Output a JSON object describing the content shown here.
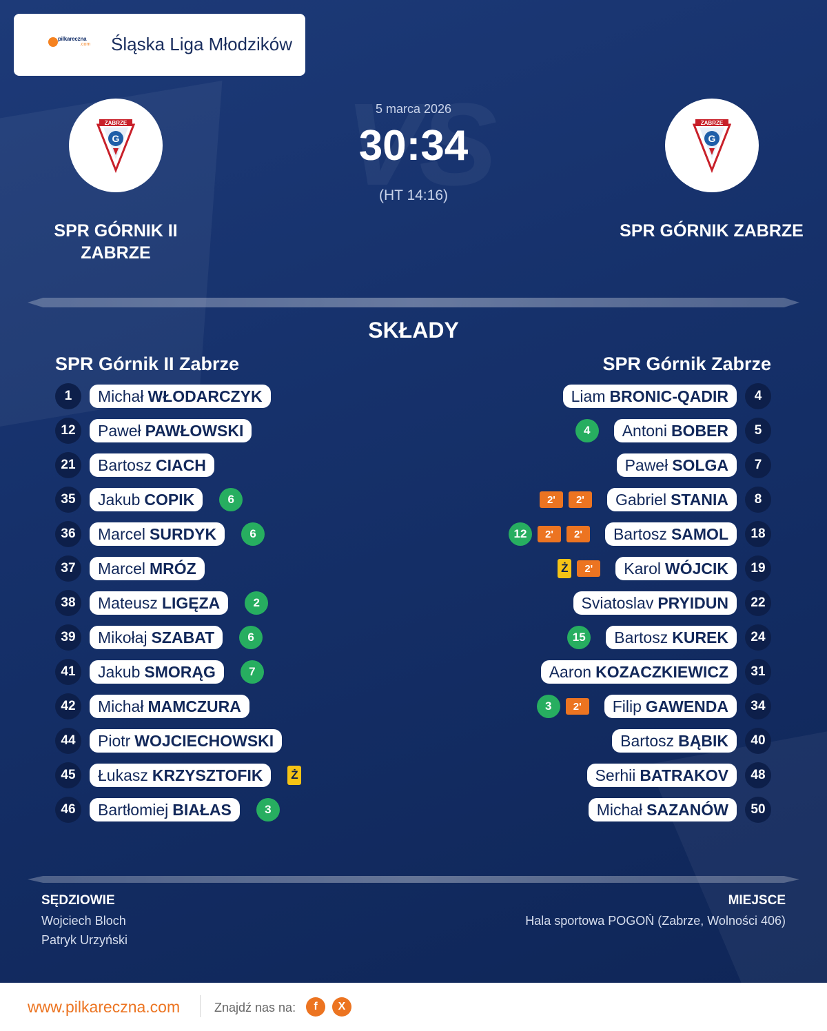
{
  "header": {
    "league": "Śląska Liga Młodzików",
    "logo_text": "pilkareczna",
    "logo_sub": ".com"
  },
  "match": {
    "date": "5 marca 2026",
    "score": "30:34",
    "halftime": "(HT 14:16)",
    "vs_text": "VS",
    "home_name": "SPR GÓRNIK II ZABRZE",
    "away_name": "SPR GÓRNIK ZABRZE"
  },
  "lineups": {
    "title": "SKŁADY",
    "home_team": "SPR Górnik II Zabrze",
    "away_team": "SPR Górnik Zabrze",
    "home": [
      {
        "num": "1",
        "first": "Michał",
        "last": "WŁODARCZYK"
      },
      {
        "num": "12",
        "first": "Paweł",
        "last": "PAWŁOWSKI"
      },
      {
        "num": "21",
        "first": "Bartosz",
        "last": "CIACH"
      },
      {
        "num": "35",
        "first": "Jakub",
        "last": "COPIK",
        "goals": "6"
      },
      {
        "num": "36",
        "first": "Marcel",
        "last": "SURDYK",
        "goals": "6"
      },
      {
        "num": "37",
        "first": "Marcel",
        "last": "MRÓZ"
      },
      {
        "num": "38",
        "first": "Mateusz",
        "last": "LIGĘZA",
        "goals": "2"
      },
      {
        "num": "39",
        "first": "Mikołaj",
        "last": "SZABAT",
        "goals": "6"
      },
      {
        "num": "41",
        "first": "Jakub",
        "last": "SMORĄG",
        "goals": "7"
      },
      {
        "num": "42",
        "first": "Michał",
        "last": "MAMCZURA"
      },
      {
        "num": "44",
        "first": "Piotr",
        "last": "WOJCIECHOWSKI"
      },
      {
        "num": "45",
        "first": "Łukasz",
        "last": "KRZYSZTOFIK",
        "yellow": "Ż"
      },
      {
        "num": "46",
        "first": "Bartłomiej",
        "last": "BIAŁAS",
        "goals": "3"
      }
    ],
    "away": [
      {
        "num": "4",
        "first": "Liam",
        "last": "BRONIC-QADIR"
      },
      {
        "num": "5",
        "first": "Antoni",
        "last": "BOBER",
        "goals": "4"
      },
      {
        "num": "7",
        "first": "Paweł",
        "last": "SOLGA"
      },
      {
        "num": "8",
        "first": "Gabriel",
        "last": "STANIA",
        "pens": [
          "2'",
          "2'"
        ]
      },
      {
        "num": "18",
        "first": "Bartosz",
        "last": "SAMOL",
        "goals": "12",
        "pens": [
          "2'",
          "2'"
        ]
      },
      {
        "num": "19",
        "first": "Karol",
        "last": "WÓJCIK",
        "yellow": "Ż",
        "pens": [
          "2'"
        ]
      },
      {
        "num": "22",
        "first": "Sviatoslav",
        "last": "PRYIDUN"
      },
      {
        "num": "24",
        "first": "Bartosz",
        "last": "KUREK",
        "goals": "15"
      },
      {
        "num": "31",
        "first": "Aaron",
        "last": "KOZACZKIEWICZ"
      },
      {
        "num": "34",
        "first": "Filip",
        "last": "GAWENDA",
        "goals": "3",
        "pens": [
          "2'"
        ]
      },
      {
        "num": "40",
        "first": "Bartosz",
        "last": "BĄBIK"
      },
      {
        "num": "48",
        "first": "Serhii",
        "last": "BATRAKOV"
      },
      {
        "num": "50",
        "first": "Michał",
        "last": "SAZANÓW"
      }
    ]
  },
  "officials": {
    "label": "SĘDZIOWIE",
    "names": [
      "Wojciech Bloch",
      "Patryk Urzyński"
    ]
  },
  "venue": {
    "label": "MIEJSCE",
    "text": "Hala sportowa POGOŃ (Zabrze, Wolności 406)"
  },
  "footer": {
    "site": "www.pilkareczna.com",
    "find_us": "Znajdź nas na:",
    "facebook": "f",
    "x": "X"
  },
  "colors": {
    "background": "#16316b",
    "accent_orange": "#ec7421",
    "goal_green": "#27ae60",
    "yellow_card": "#f5c315",
    "number_badge": "#0d1f4a"
  }
}
